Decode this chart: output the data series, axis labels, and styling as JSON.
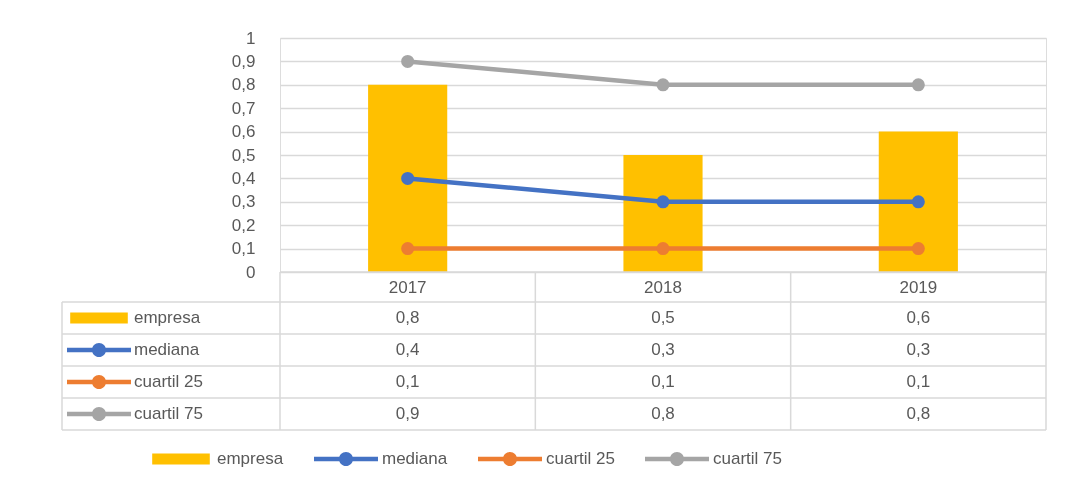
{
  "chart_data": {
    "type": "bar",
    "categories": [
      "2017",
      "2018",
      "2019"
    ],
    "series": [
      {
        "name": "empresa",
        "color": "#ffc000",
        "values": [
          0.8,
          0.5,
          0.6
        ],
        "value_labels": [
          "0,8",
          "0,5",
          "0,6"
        ]
      },
      {
        "name": "mediana",
        "type": "line",
        "color": "#4472c4",
        "values": [
          0.4,
          0.3,
          0.3
        ],
        "value_labels": [
          "0,4",
          "0,3",
          "0,3"
        ]
      },
      {
        "name": "cuartil 25",
        "type": "line",
        "color": "#ed7d31",
        "values": [
          0.1,
          0.1,
          0.1
        ],
        "value_labels": [
          "0,1",
          "0,1",
          "0,1"
        ]
      },
      {
        "name": "cuartil 75",
        "type": "line",
        "color": "#a5a5a5",
        "values": [
          0.9,
          0.8,
          0.8
        ],
        "value_labels": [
          "0,9",
          "0,8",
          "0,8"
        ]
      }
    ],
    "ylim": [
      0,
      1
    ],
    "yticks": [
      0,
      {
        "value": 0.1,
        "label": "0,1"
      },
      {
        "value": 0.2,
        "label": "0,2"
      },
      {
        "value": 0.3,
        "label": "0,3"
      },
      {
        "value": 0.4,
        "label": "0,4"
      },
      {
        "value": 0.5,
        "label": "0,5"
      },
      {
        "value": 0.6,
        "label": "0,6"
      },
      {
        "value": 0.7,
        "label": "0,7"
      },
      {
        "value": 0.8,
        "label": "0,8"
      },
      {
        "value": 0.9,
        "label": "0,9"
      },
      1
    ],
    "grid": "y",
    "legend": "bottom",
    "marker": "circle",
    "line_style": "solid"
  }
}
